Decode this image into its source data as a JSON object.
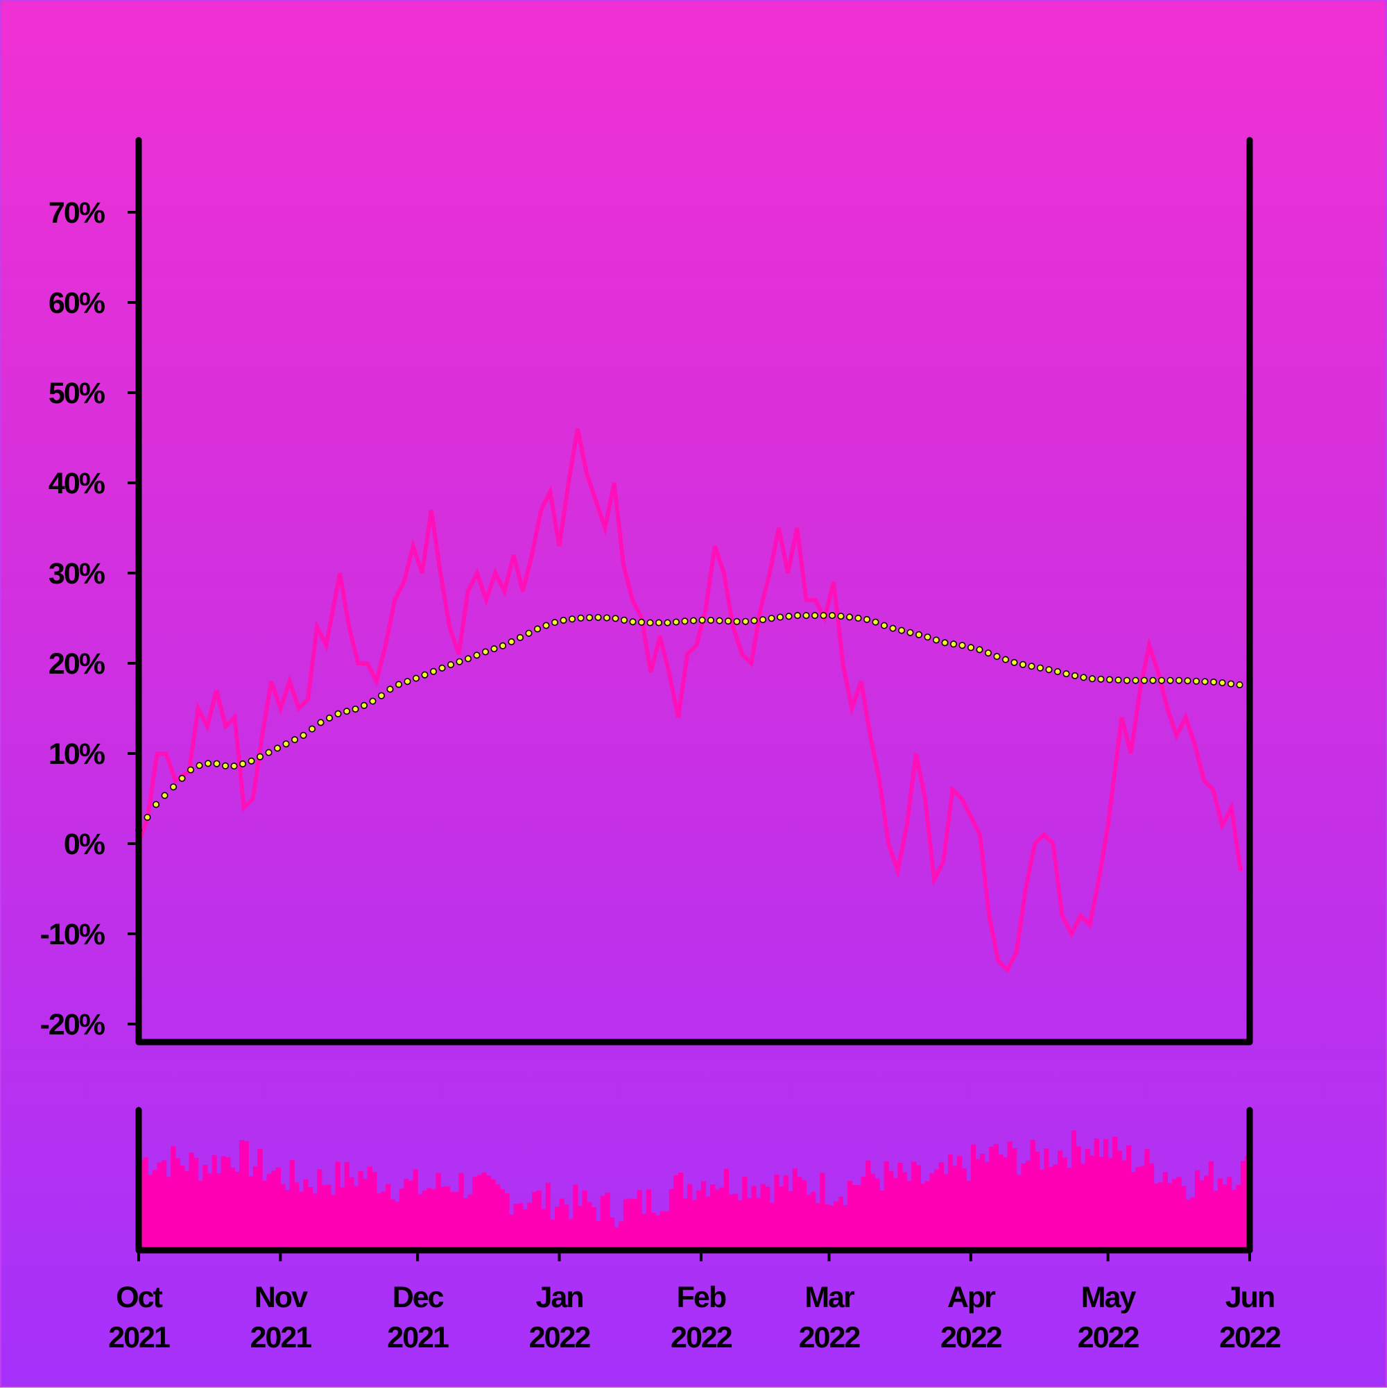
{
  "chart_data": [
    {
      "type": "line",
      "title": "",
      "xlabel": "",
      "ylabel": "",
      "x_range": [
        "2021-10-01",
        "2022-06-01"
      ],
      "ylim": [
        -22,
        78
      ],
      "y_ticks": [
        "-20%",
        "-10%",
        "0%",
        "10%",
        "20%",
        "30%",
        "40%",
        "50%",
        "60%",
        "70%"
      ],
      "y_tick_values": [
        -20,
        -10,
        0,
        10,
        20,
        30,
        40,
        50,
        60,
        70
      ],
      "grid": false,
      "colors": {
        "line": "#ff10b8",
        "ma_fill": "#f8f830",
        "ma_stroke": "#000000",
        "axis": "#000000"
      },
      "series": [
        {
          "key": "return",
          "points": [
            [
              "2021-10-01",
              0
            ],
            [
              "2021-10-03",
              3
            ],
            [
              "2021-10-05",
              10
            ],
            [
              "2021-10-07",
              10
            ],
            [
              "2021-10-09",
              7
            ],
            [
              "2021-10-12",
              8
            ],
            [
              "2021-10-14",
              15
            ],
            [
              "2021-10-16",
              13
            ],
            [
              "2021-10-18",
              17
            ],
            [
              "2021-10-20",
              13
            ],
            [
              "2021-10-22",
              14
            ],
            [
              "2021-10-24",
              4
            ],
            [
              "2021-10-26",
              5
            ],
            [
              "2021-10-28",
              12
            ],
            [
              "2021-10-30",
              18
            ],
            [
              "2021-11-01",
              15
            ],
            [
              "2021-11-03",
              18
            ],
            [
              "2021-11-05",
              15
            ],
            [
              "2021-11-07",
              16
            ],
            [
              "2021-11-09",
              24
            ],
            [
              "2021-11-11",
              22
            ],
            [
              "2021-11-14",
              30
            ],
            [
              "2021-11-16",
              24
            ],
            [
              "2021-11-18",
              20
            ],
            [
              "2021-11-20",
              20
            ],
            [
              "2021-11-22",
              18
            ],
            [
              "2021-11-24",
              22
            ],
            [
              "2021-11-26",
              27
            ],
            [
              "2021-11-28",
              29
            ],
            [
              "2021-11-30",
              33
            ],
            [
              "2021-12-02",
              30
            ],
            [
              "2021-12-04",
              37
            ],
            [
              "2021-12-06",
              30
            ],
            [
              "2021-12-08",
              24
            ],
            [
              "2021-12-10",
              21
            ],
            [
              "2021-12-12",
              28
            ],
            [
              "2021-12-14",
              30
            ],
            [
              "2021-12-16",
              27
            ],
            [
              "2021-12-18",
              30
            ],
            [
              "2021-12-20",
              28
            ],
            [
              "2021-12-22",
              32
            ],
            [
              "2021-12-24",
              28
            ],
            [
              "2021-12-26",
              32
            ],
            [
              "2021-12-28",
              37
            ],
            [
              "2021-12-30",
              39
            ],
            [
              "2022-01-01",
              33
            ],
            [
              "2022-01-03",
              40
            ],
            [
              "2022-01-05",
              46
            ],
            [
              "2022-01-07",
              41
            ],
            [
              "2022-01-09",
              38
            ],
            [
              "2022-01-11",
              35
            ],
            [
              "2022-01-13",
              40
            ],
            [
              "2022-01-15",
              31
            ],
            [
              "2022-01-17",
              27
            ],
            [
              "2022-01-19",
              25
            ],
            [
              "2022-01-21",
              19
            ],
            [
              "2022-01-23",
              23
            ],
            [
              "2022-01-25",
              19
            ],
            [
              "2022-01-27",
              14
            ],
            [
              "2022-01-29",
              21
            ],
            [
              "2022-01-31",
              22
            ],
            [
              "2022-02-02",
              26
            ],
            [
              "2022-02-04",
              33
            ],
            [
              "2022-02-06",
              30
            ],
            [
              "2022-02-08",
              24
            ],
            [
              "2022-02-10",
              21
            ],
            [
              "2022-02-12",
              20
            ],
            [
              "2022-02-14",
              26
            ],
            [
              "2022-02-16",
              30
            ],
            [
              "2022-02-18",
              35
            ],
            [
              "2022-02-20",
              30
            ],
            [
              "2022-02-22",
              35
            ],
            [
              "2022-02-24",
              27
            ],
            [
              "2022-02-26",
              27
            ],
            [
              "2022-02-28",
              25
            ],
            [
              "2022-03-02",
              29
            ],
            [
              "2022-03-04",
              20
            ],
            [
              "2022-03-06",
              15
            ],
            [
              "2022-03-08",
              18
            ],
            [
              "2022-03-10",
              12
            ],
            [
              "2022-03-12",
              7
            ],
            [
              "2022-03-14",
              0
            ],
            [
              "2022-03-16",
              -3
            ],
            [
              "2022-03-18",
              2
            ],
            [
              "2022-03-20",
              10
            ],
            [
              "2022-03-22",
              5
            ],
            [
              "2022-03-24",
              -4
            ],
            [
              "2022-03-26",
              -2
            ],
            [
              "2022-03-28",
              6
            ],
            [
              "2022-03-30",
              5
            ],
            [
              "2022-04-01",
              3
            ],
            [
              "2022-04-03",
              1
            ],
            [
              "2022-04-05",
              -8
            ],
            [
              "2022-04-07",
              -13
            ],
            [
              "2022-04-09",
              -14
            ],
            [
              "2022-04-11",
              -12
            ],
            [
              "2022-04-13",
              -5
            ],
            [
              "2022-04-15",
              0
            ],
            [
              "2022-04-17",
              1
            ],
            [
              "2022-04-19",
              0
            ],
            [
              "2022-04-21",
              -8
            ],
            [
              "2022-04-23",
              -10
            ],
            [
              "2022-04-25",
              -8
            ],
            [
              "2022-04-27",
              -9
            ],
            [
              "2022-04-29",
              -4
            ],
            [
              "2022-05-01",
              2
            ],
            [
              "2022-05-04",
              14
            ],
            [
              "2022-05-06",
              10
            ],
            [
              "2022-05-08",
              17
            ],
            [
              "2022-05-10",
              22
            ],
            [
              "2022-05-12",
              19
            ],
            [
              "2022-05-14",
              15
            ],
            [
              "2022-05-16",
              12
            ],
            [
              "2022-05-18",
              14
            ],
            [
              "2022-05-20",
              11
            ],
            [
              "2022-05-22",
              7
            ],
            [
              "2022-05-24",
              6
            ],
            [
              "2022-05-26",
              2
            ],
            [
              "2022-05-28",
              4
            ],
            [
              "2022-05-30",
              -3
            ]
          ]
        },
        {
          "key": "moving_average",
          "points": [
            [
              "2021-10-01",
              1.5
            ],
            [
              "2021-10-05",
              4.5
            ],
            [
              "2021-10-09",
              6.5
            ],
            [
              "2021-10-13",
              8.5
            ],
            [
              "2021-10-17",
              9
            ],
            [
              "2021-10-21",
              8.5
            ],
            [
              "2021-10-25",
              9
            ],
            [
              "2021-10-29",
              10
            ],
            [
              "2021-11-02",
              11
            ],
            [
              "2021-11-06",
              12
            ],
            [
              "2021-11-10",
              13.5
            ],
            [
              "2021-11-14",
              14.5
            ],
            [
              "2021-11-18",
              15
            ],
            [
              "2021-11-22",
              16
            ],
            [
              "2021-11-26",
              17.5
            ],
            [
              "2021-11-30",
              18.2
            ],
            [
              "2021-12-04",
              19
            ],
            [
              "2021-12-08",
              19.8
            ],
            [
              "2021-12-12",
              20.5
            ],
            [
              "2021-12-16",
              21.3
            ],
            [
              "2021-12-20",
              22
            ],
            [
              "2021-12-24",
              23
            ],
            [
              "2021-12-28",
              24
            ],
            [
              "2022-01-01",
              24.7
            ],
            [
              "2022-01-05",
              25
            ],
            [
              "2022-01-09",
              25.1
            ],
            [
              "2022-01-13",
              25
            ],
            [
              "2022-01-17",
              24.6
            ],
            [
              "2022-01-21",
              24.5
            ],
            [
              "2022-01-25",
              24.5
            ],
            [
              "2022-01-29",
              24.7
            ],
            [
              "2022-02-02",
              24.8
            ],
            [
              "2022-02-06",
              24.7
            ],
            [
              "2022-02-10",
              24.6
            ],
            [
              "2022-02-14",
              24.8
            ],
            [
              "2022-02-18",
              25.1
            ],
            [
              "2022-02-22",
              25.3
            ],
            [
              "2022-02-26",
              25.3
            ],
            [
              "2022-03-02",
              25.3
            ],
            [
              "2022-03-06",
              25.1
            ],
            [
              "2022-03-10",
              24.8
            ],
            [
              "2022-03-14",
              24
            ],
            [
              "2022-03-18",
              23.5
            ],
            [
              "2022-03-22",
              23
            ],
            [
              "2022-03-26",
              22.3
            ],
            [
              "2022-03-30",
              22
            ],
            [
              "2022-04-03",
              21.5
            ],
            [
              "2022-04-07",
              20.7
            ],
            [
              "2022-04-11",
              20
            ],
            [
              "2022-04-15",
              19.6
            ],
            [
              "2022-04-19",
              19.2
            ],
            [
              "2022-04-23",
              18.7
            ],
            [
              "2022-04-27",
              18.3
            ],
            [
              "2022-05-01",
              18.2
            ],
            [
              "2022-05-05",
              18.1
            ],
            [
              "2022-05-09",
              18.1
            ],
            [
              "2022-05-13",
              18.1
            ],
            [
              "2022-05-17",
              18.1
            ],
            [
              "2022-05-21",
              18.0
            ],
            [
              "2022-05-25",
              17.9
            ],
            [
              "2022-05-30",
              17.6
            ]
          ]
        }
      ]
    },
    {
      "type": "bar",
      "title": "",
      "xlabel": "",
      "ylabel": "",
      "x_range": [
        "2021-10-01",
        "2022-06-01"
      ],
      "x_ticks": [
        {
          "month": "Oct",
          "year": "2021",
          "date": "2021-10-01"
        },
        {
          "month": "Nov",
          "year": "2021",
          "date": "2021-11-01"
        },
        {
          "month": "Dec",
          "year": "2021",
          "date": "2021-12-01"
        },
        {
          "month": "Jan",
          "year": "2022",
          "date": "2022-01-01"
        },
        {
          "month": "Feb",
          "year": "2022",
          "date": "2022-02-01"
        },
        {
          "month": "Mar",
          "year": "2022",
          "date": "2022-03-01"
        },
        {
          "month": "Apr",
          "year": "2022",
          "date": "2022-04-01"
        },
        {
          "month": "May",
          "year": "2022",
          "date": "2022-05-01"
        },
        {
          "month": "Jun",
          "year": "2022",
          "date": "2022-06-01"
        }
      ],
      "ylim": [
        0,
        1
      ],
      "colors": {
        "bar": "#ff00b4"
      },
      "weekly_volume": [
        0.66,
        0.65,
        0.62,
        0.7,
        0.58,
        0.5,
        0.52,
        0.55,
        0.48,
        0.45,
        0.5,
        0.42,
        0.38,
        0.36,
        0.33,
        0.3,
        0.35,
        0.47,
        0.52,
        0.5,
        0.48,
        0.47,
        0.44,
        0.55,
        0.52,
        0.5,
        0.62,
        0.7,
        0.66,
        0.72,
        0.78,
        0.68,
        0.6,
        0.5,
        0.55,
        0.6
      ]
    }
  ]
}
